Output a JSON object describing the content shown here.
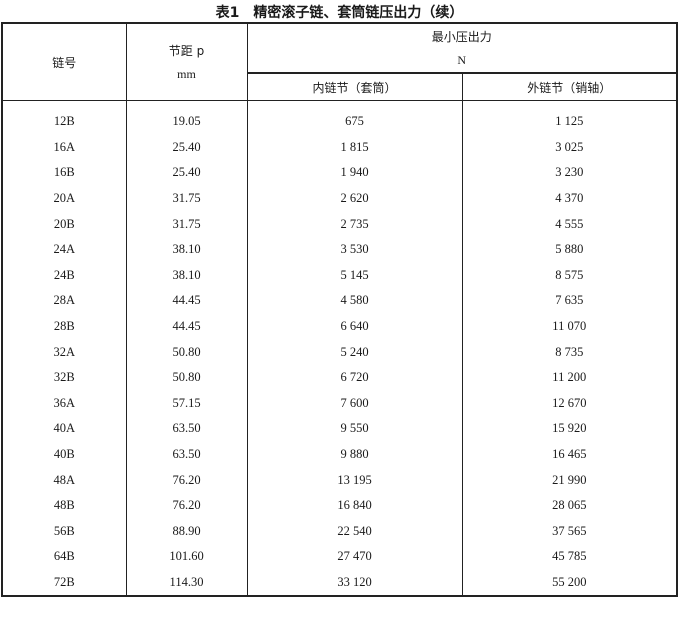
{
  "title": "表1　精密滚子链、套筒链压出力（续）",
  "header": {
    "chain_no": "链号",
    "pitch": "节距 p",
    "pitch_unit": "mm",
    "force": "最小压出力",
    "force_unit": "N",
    "inner": "内链节（套筒）",
    "outer": "外链节（销轴）"
  },
  "rows": [
    [
      "12B",
      "19.05",
      "675",
      "1 125"
    ],
    [
      "16A",
      "25.40",
      "1 815",
      "3 025"
    ],
    [
      "16B",
      "25.40",
      "1 940",
      "3 230"
    ],
    [
      "20A",
      "31.75",
      "2 620",
      "4 370"
    ],
    [
      "20B",
      "31.75",
      "2 735",
      "4 555"
    ],
    [
      "24A",
      "38.10",
      "3 530",
      "5 880"
    ],
    [
      "24B",
      "38.10",
      "5 145",
      "8 575"
    ],
    [
      "28A",
      "44.45",
      "4 580",
      "7 635"
    ],
    [
      "28B",
      "44.45",
      "6 640",
      "11 070"
    ],
    [
      "32A",
      "50.80",
      "5 240",
      "8 735"
    ],
    [
      "32B",
      "50.80",
      "6 720",
      "11 200"
    ],
    [
      "36A",
      "57.15",
      "7 600",
      "12 670"
    ],
    [
      "40A",
      "63.50",
      "9 550",
      "15 920"
    ],
    [
      "40B",
      "63.50",
      "9 880",
      "16 465"
    ],
    [
      "48A",
      "76.20",
      "13 195",
      "21 990"
    ],
    [
      "48B",
      "76.20",
      "16 840",
      "28 065"
    ],
    [
      "56B",
      "88.90",
      "22 540",
      "37 565"
    ],
    [
      "64B",
      "101.60",
      "27 470",
      "45 785"
    ],
    [
      "72B",
      "114.30",
      "33 120",
      "55 200"
    ]
  ]
}
